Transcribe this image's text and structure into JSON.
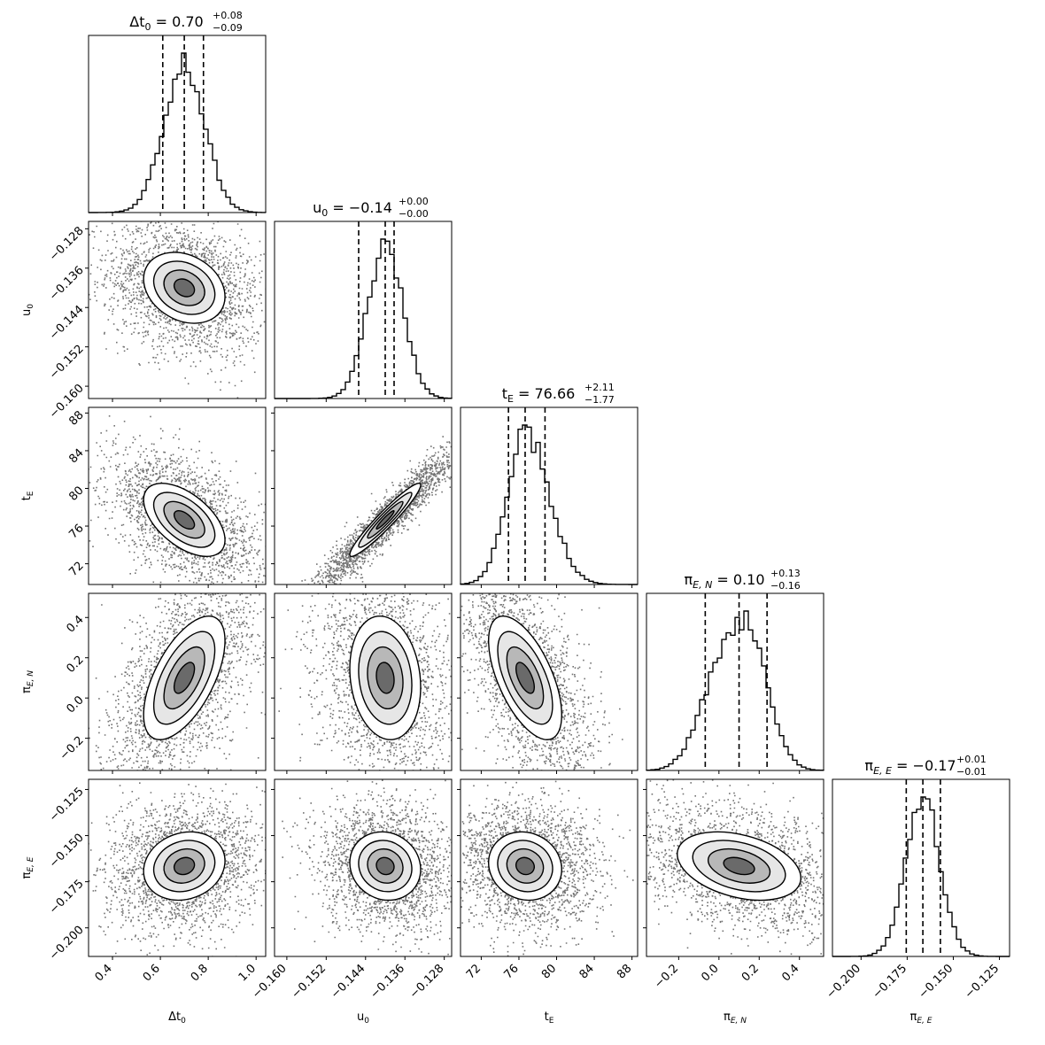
{
  "chart_data": {
    "type": "corner",
    "parameters": [
      {
        "key": "dt0",
        "label": "Δt",
        "sub": "0",
        "sub_italic": false,
        "range": [
          0.3,
          1.04
        ],
        "ticks": [
          0.4,
          0.6,
          0.8,
          1.0
        ],
        "tick_labels": [
          "0.4",
          "0.6",
          "0.8",
          "1.0"
        ],
        "median": 0.7,
        "plus": "0.08",
        "minus": "0.09",
        "q16": 0.61,
        "q84": 0.78,
        "title_value": "0.70",
        "axis_label": "Δt0"
      },
      {
        "key": "u0",
        "label": "u",
        "sub": "0",
        "sub_italic": false,
        "range": [
          -0.1625,
          -0.1265
        ],
        "ticks": [
          -0.16,
          -0.152,
          -0.144,
          -0.136,
          -0.128
        ],
        "tick_labels": [
          "−0.160",
          "−0.152",
          "−0.144",
          "−0.136",
          "−0.128"
        ],
        "median": -0.14,
        "plus": "0.00",
        "minus": "0.00",
        "q16": -0.1454,
        "q84": -0.1382,
        "title_value": "−0.14",
        "axis_label": "u0"
      },
      {
        "key": "tE",
        "label": "t",
        "sub": "E",
        "sub_italic": false,
        "range": [
          69.8,
          88.6
        ],
        "ticks": [
          72,
          76,
          80,
          84,
          88
        ],
        "tick_labels": [
          "72",
          "76",
          "80",
          "84",
          "88"
        ],
        "median": 76.66,
        "plus": "2.11",
        "minus": "1.77",
        "q16": 74.89,
        "q84": 78.77,
        "title_value": "76.66",
        "axis_label": "tE"
      },
      {
        "key": "piEN",
        "label": "π",
        "sub": "E, N",
        "sub_italic": true,
        "range": [
          -0.36,
          0.52
        ],
        "ticks": [
          -0.2,
          0.0,
          0.2,
          0.4
        ],
        "tick_labels": [
          "−0.2",
          "0.0",
          "0.2",
          "0.4"
        ],
        "median": 0.1,
        "plus": "0.13",
        "minus": "0.16",
        "q16": -0.068,
        "q84": 0.239,
        "title_value": "0.10",
        "axis_label": "πE,N"
      },
      {
        "key": "piEE",
        "label": "π",
        "sub": "E, E",
        "sub_italic": true,
        "range": [
          -0.2155,
          -0.1195
        ],
        "ticks": [
          -0.2,
          -0.175,
          -0.15,
          -0.125
        ],
        "tick_labels": [
          "−0.200",
          "−0.175",
          "−0.150",
          "−0.125"
        ],
        "median": -0.1665,
        "plus": "0.01",
        "minus": "0.01",
        "q16": -0.1755,
        "q84": -0.157,
        "title_value": "−0.17",
        "axis_label": "πE,E"
      }
    ],
    "histograms_visible": true,
    "quantiles": [
      0.16,
      0.5,
      0.84
    ],
    "grid": false,
    "colors": {
      "line": "#000000",
      "background": "#ffffff",
      "contour_fill": "#ffffff"
    }
  }
}
